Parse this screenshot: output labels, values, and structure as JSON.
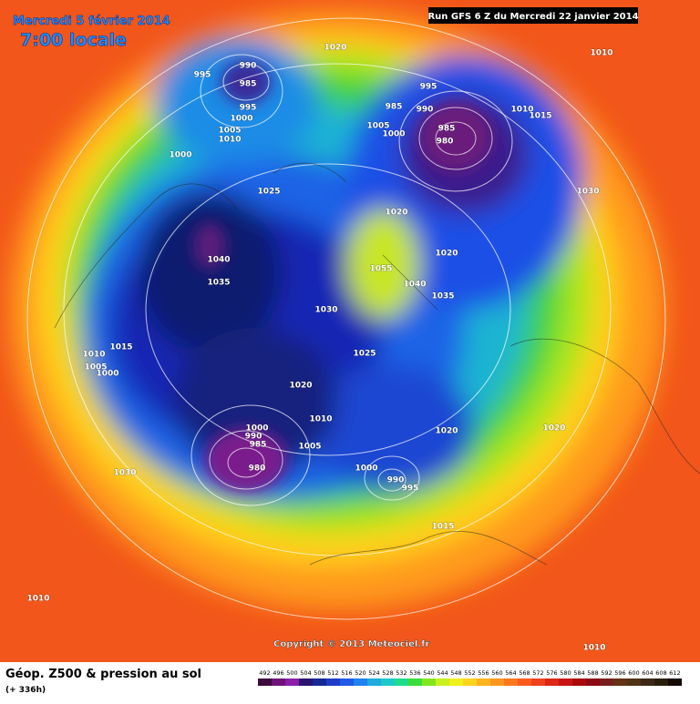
{
  "header": {
    "date": "Mercredi 5 février 2014",
    "time": "7:00 locale",
    "run": "Run GFS 6 Z du Mercredi 22 janvier 2014"
  },
  "map": {
    "pressure_labels": [
      995,
      990,
      985,
      995,
      1000,
      1005,
      1010,
      1000,
      1020,
      1010,
      995,
      985,
      990,
      1005,
      1000,
      985,
      980,
      1010,
      1015,
      1030,
      1025,
      1020,
      1040,
      1035,
      1020,
      1055,
      1040,
      1035,
      1030,
      1015,
      1010,
      1005,
      1000,
      1025,
      1020,
      1010,
      1000,
      990,
      985,
      980,
      1005,
      1000,
      990,
      995,
      1020,
      1020,
      1030,
      1015,
      1010,
      1010
    ]
  },
  "footer": {
    "copyright": "Copyright © 2013 Meteociel.fr",
    "title": "Géop. Z500 & pression au sol",
    "lead": "(+ 336h)"
  },
  "scale": {
    "ticks": [
      492,
      496,
      500,
      504,
      508,
      512,
      516,
      520,
      524,
      528,
      532,
      536,
      540,
      544,
      548,
      552,
      556,
      560,
      564,
      568,
      572,
      576,
      580,
      584,
      588,
      592,
      596,
      600,
      604,
      608,
      612
    ]
  }
}
